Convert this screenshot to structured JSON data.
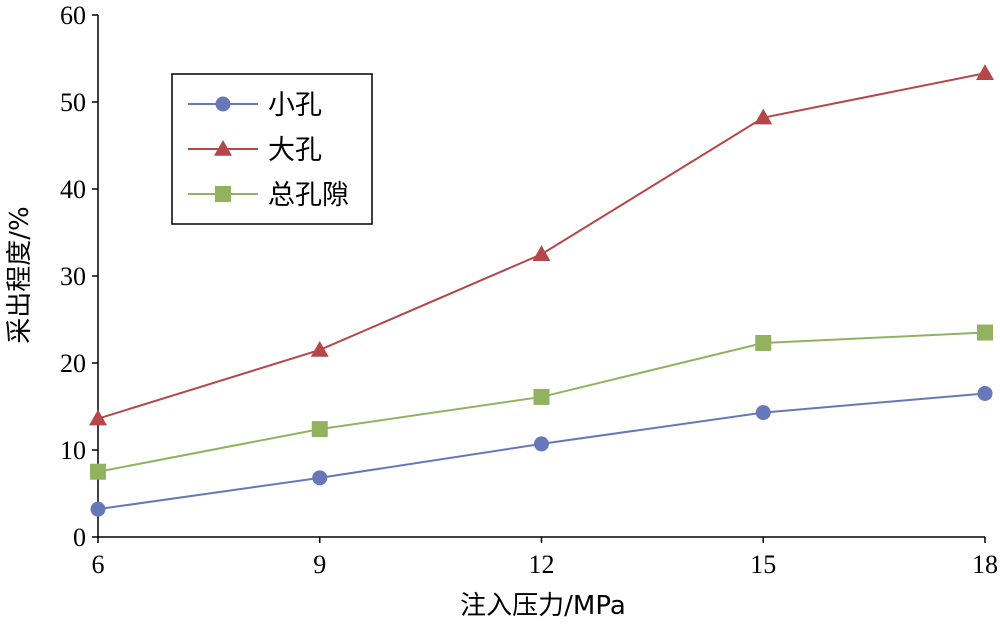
{
  "chart_data": {
    "type": "line",
    "xlabel": "注入压力/MPa",
    "ylabel": "采出程度/%",
    "x": [
      6,
      9,
      12,
      15,
      18
    ],
    "xticks": [
      "6",
      "9",
      "12",
      "15",
      "18"
    ],
    "yticks": [
      "0",
      "10",
      "20",
      "30",
      "40",
      "50",
      "60"
    ],
    "xlim": [
      6,
      18
    ],
    "ylim": [
      0,
      60
    ],
    "grid": false,
    "legend_position": "top-left",
    "series": [
      {
        "name": "小孔",
        "marker": "circle",
        "color": "#6678b8",
        "values": [
          3.2,
          6.8,
          10.7,
          14.3,
          16.5
        ]
      },
      {
        "name": "大孔",
        "marker": "triangle",
        "color": "#b5474a",
        "values": [
          13.6,
          21.5,
          32.5,
          48.2,
          53.3
        ]
      },
      {
        "name": "总孔隙",
        "marker": "square",
        "color": "#93b260",
        "values": [
          7.5,
          12.4,
          16.1,
          22.3,
          23.5
        ]
      }
    ]
  }
}
